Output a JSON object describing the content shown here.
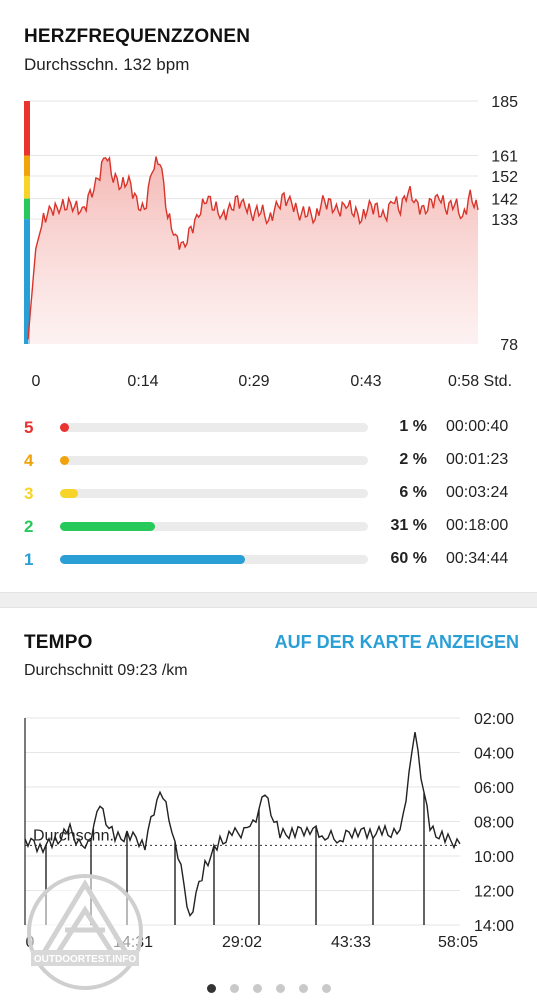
{
  "heart": {
    "title": "HERZFREQUENZZONEN",
    "subtitle": "Durchsschn. 132 bpm",
    "y_ticks": [
      "185",
      "161",
      "152",
      "142",
      "133",
      "78"
    ],
    "x_ticks": [
      "0",
      "0:14",
      "0:29",
      "0:43",
      "0:58 Std."
    ],
    "colors": {
      "line": "#d9342b",
      "fill": "#f6c3c0"
    },
    "zones": [
      {
        "num": "5",
        "pct": "1 %",
        "time": "00:00:40",
        "fraction": 0.01,
        "color": "#e8332e"
      },
      {
        "num": "4",
        "pct": "2 %",
        "time": "00:01:23",
        "fraction": 0.02,
        "color": "#f0a30a"
      },
      {
        "num": "3",
        "pct": "6 %",
        "time": "00:03:24",
        "fraction": 0.06,
        "color": "#f6d42a"
      },
      {
        "num": "2",
        "pct": "31 %",
        "time": "00:18:00",
        "fraction": 0.31,
        "color": "#27c95a"
      },
      {
        "num": "1",
        "pct": "60 %",
        "time": "00:34:44",
        "fraction": 0.6,
        "color": "#2a9fd6"
      }
    ]
  },
  "tempo": {
    "title": "TEMPO",
    "map_link": "AUF DER KARTE ANZEIGEN",
    "subtitle": "Durchschnitt 09:23 /km",
    "avg_label": "Durchschn.",
    "y_ticks": [
      "02:00",
      "04:00",
      "06:00",
      "08:00",
      "10:00",
      "12:00",
      "14:00"
    ],
    "x_ticks": [
      "0",
      "14:31",
      "29:02",
      "43:33",
      "58:05"
    ],
    "colors": {
      "line": "#222222",
      "link": "#2a9fd6"
    }
  },
  "pager": {
    "count": 6,
    "active": 0
  },
  "watermark": {
    "text": "OUTDOORTEST.INFO"
  },
  "chart_data": [
    {
      "type": "area",
      "title": "HERZFREQUENZZONEN",
      "ylabel": "bpm",
      "xlabel": "Std.",
      "ylim": [
        78,
        185
      ],
      "x_ticks": [
        "0",
        "0:14",
        "0:29",
        "0:43",
        "0:58 Std."
      ],
      "y_ticks": [
        185,
        161,
        152,
        142,
        133,
        78
      ],
      "zone_bands": [
        {
          "zone": "5",
          "from": 161,
          "to": 185,
          "color": "#e8332e"
        },
        {
          "zone": "4",
          "from": 152,
          "to": 161,
          "color": "#f0a30a"
        },
        {
          "zone": "3",
          "from": 142,
          "to": 152,
          "color": "#f6d42a"
        },
        {
          "zone": "2",
          "from": 133,
          "to": 142,
          "color": "#27c95a"
        },
        {
          "zone": "1",
          "from": 78,
          "to": 133,
          "color": "#2a9fd6"
        }
      ],
      "series": [
        {
          "x": [
            0,
            1,
            2,
            3,
            4,
            5,
            6,
            7,
            8,
            9,
            10,
            11,
            12,
            13,
            14,
            15,
            16,
            17,
            18,
            19,
            20,
            21,
            22,
            23,
            24,
            25,
            26,
            27,
            28,
            29,
            30,
            31,
            32,
            33,
            34,
            35,
            36,
            37,
            38,
            39,
            40,
            41,
            42,
            43,
            44,
            45,
            46,
            47,
            48,
            49,
            50,
            51,
            52,
            53,
            54,
            55,
            56,
            57,
            58
          ],
          "values": [
            80,
            120,
            133,
            137,
            138,
            140,
            139,
            136,
            143,
            150,
            162,
            152,
            148,
            150,
            140,
            136,
            155,
            160,
            135,
            125,
            120,
            128,
            135,
            143,
            139,
            134,
            137,
            141,
            139,
            135,
            138,
            132,
            138,
            142,
            140,
            135,
            137,
            133,
            141,
            139,
            136,
            140,
            137,
            133,
            139,
            137,
            133,
            142,
            138,
            146,
            140,
            136,
            140,
            143,
            138,
            141,
            133,
            143,
            137
          ]
        }
      ]
    },
    {
      "type": "line",
      "title": "TEMPO",
      "ylabel": "/km",
      "ylim": [
        "02:00",
        "14:00"
      ],
      "y_inverted": true,
      "x_ticks": [
        "0",
        "14:31",
        "29:02",
        "43:33",
        "58:05"
      ],
      "average": "09:23",
      "series": [
        {
          "x_minutes": [
            0,
            2,
            4,
            6,
            8,
            10,
            12,
            14,
            16,
            18,
            20,
            22,
            24,
            26,
            28,
            30,
            32,
            34,
            36,
            38,
            40,
            42,
            44,
            46,
            48,
            50,
            52,
            54,
            56,
            58
          ],
          "pace_minutes": [
            9.0,
            9.5,
            9.2,
            8.5,
            9.8,
            7.2,
            9.0,
            8.8,
            9.3,
            6.0,
            9.0,
            13.5,
            10.5,
            9.2,
            8.7,
            8.5,
            6.5,
            8.8,
            8.6,
            8.4,
            8.8,
            9.0,
            8.5,
            8.7,
            8.6,
            8.8,
            3.0,
            8.5,
            9.0,
            9.3
          ]
        }
      ]
    }
  ]
}
